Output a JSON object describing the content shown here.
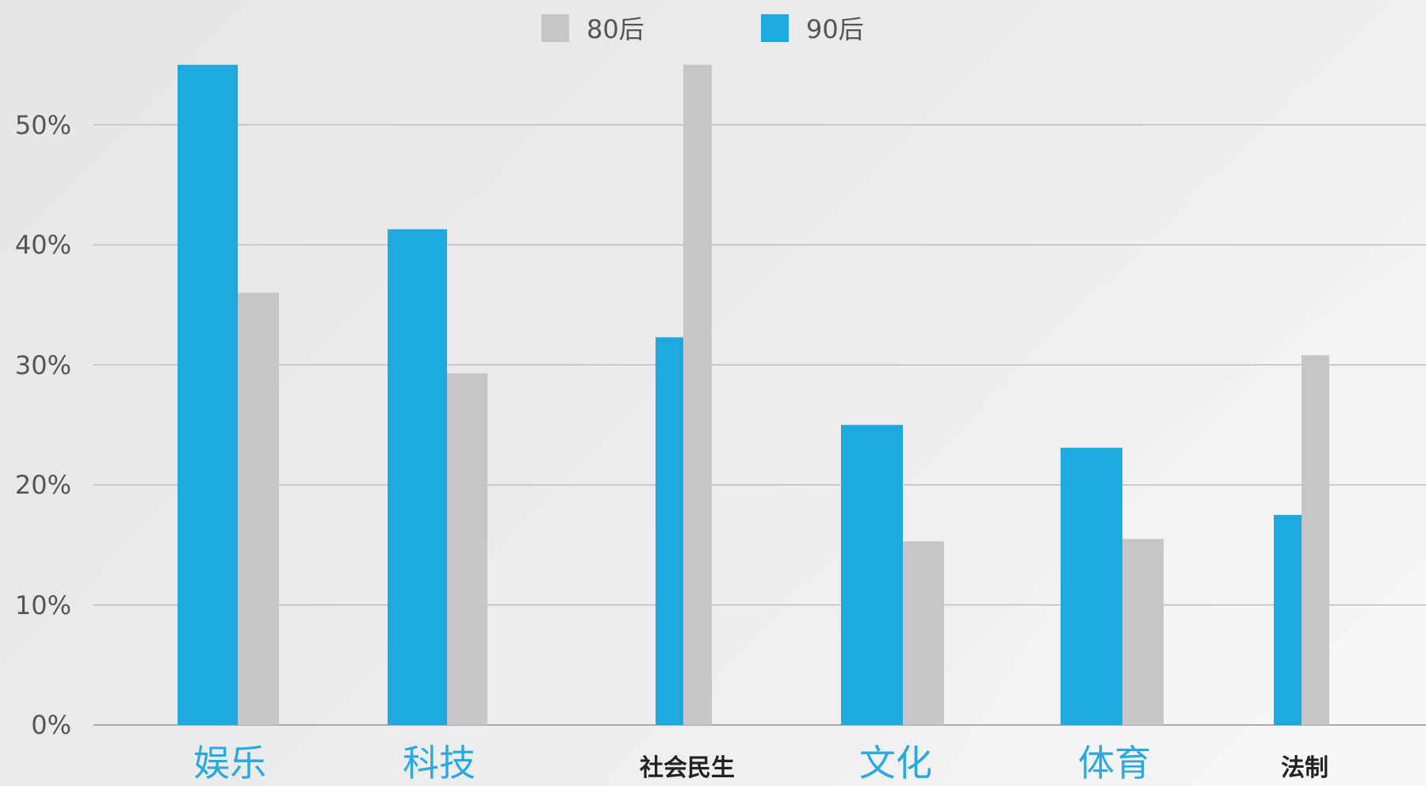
{
  "chart_data": {
    "type": "bar",
    "categories": [
      "娱乐",
      "科技",
      "社会民生",
      "文化",
      "体育",
      "法制"
    ],
    "category_styles": [
      "large-blue",
      "large-blue",
      "small-dark",
      "large-blue",
      "large-blue",
      "small-dark"
    ],
    "series": [
      {
        "name": "90后",
        "color": "#1ea9e1",
        "values": [
          55,
          41.3,
          32.3,
          25,
          23.1,
          17.5
        ]
      },
      {
        "name": "80后",
        "color": "#c6c6c6",
        "values": [
          36,
          29.3,
          55,
          15.3,
          15.5,
          30.8
        ]
      }
    ],
    "legend_order": [
      "80后",
      "90后"
    ],
    "yticks": [
      "0%",
      "10%",
      "20%",
      "30%",
      "40%",
      "50%"
    ],
    "ylim": [
      0,
      55
    ],
    "grid": true,
    "legend_position": "top-center",
    "title": "",
    "xlabel": "",
    "ylabel": ""
  },
  "colors": {
    "accent_blue": "#1ea9e1",
    "light_gray": "#c6c6c6",
    "category_blue": "#2aa9e0",
    "category_dark": "#222222",
    "grid": "#bdbdbd"
  }
}
